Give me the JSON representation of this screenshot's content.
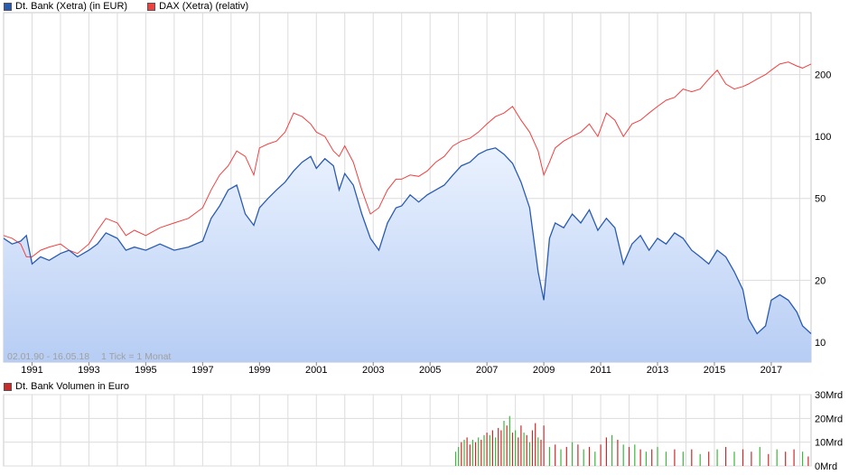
{
  "colors": {
    "deutsche_bank_line": "#2a5bb0",
    "deutsche_bank_fill_top": "#eaf2fe",
    "deutsche_bank_fill_bottom": "#b7cdf4",
    "dax_line": "#f04040",
    "volume_up": "#3cb83c",
    "volume_down": "#cc2a2a",
    "grid": "#dcdcdc",
    "date_range_text": "#a0a0a0"
  },
  "price_chart": {
    "legend": [
      {
        "label": "Dt. Bank (Xetra) (in EUR)",
        "color": "#2a5bb0"
      },
      {
        "label": "DAX (Xetra) (relativ)",
        "color": "#f04040"
      }
    ],
    "date_range_label": "02.01.90 - 16.05.18",
    "tick_note": "1 Tick = 1 Monat"
  },
  "volume_chart": {
    "legend": [
      {
        "label": "Dt. Bank Volumen in Euro",
        "color": "#cc2a2a"
      }
    ]
  },
  "chart_data": [
    {
      "type": "line",
      "title": "",
      "y_scale": "log",
      "ylim": [
        8,
        400
      ],
      "xlim": [
        1990.0,
        2018.4
      ],
      "x_tick_labels": [
        "1991",
        "1993",
        "1995",
        "1997",
        "1999",
        "2001",
        "2003",
        "2005",
        "2007",
        "2009",
        "2011",
        "2013",
        "2015",
        "2017"
      ],
      "y_tick_labels": [
        "10",
        "20",
        "50",
        "100",
        "200"
      ],
      "grid": true,
      "legend_position": "top-left",
      "series": [
        {
          "name": "Dt. Bank (Xetra) (in EUR)",
          "area": true,
          "x": [
            1990.0,
            1990.3,
            1990.6,
            1990.8,
            1991.0,
            1991.3,
            1991.6,
            1992.0,
            1992.3,
            1992.6,
            1993.0,
            1993.3,
            1993.6,
            1994.0,
            1994.3,
            1994.6,
            1995.0,
            1995.5,
            1996.0,
            1996.5,
            1997.0,
            1997.3,
            1997.6,
            1997.9,
            1998.2,
            1998.5,
            1998.8,
            1999.0,
            1999.3,
            1999.6,
            1999.9,
            2000.2,
            2000.5,
            2000.8,
            2001.0,
            2001.3,
            2001.6,
            2001.8,
            2002.0,
            2002.3,
            2002.6,
            2002.9,
            2003.2,
            2003.5,
            2003.8,
            2004.0,
            2004.3,
            2004.6,
            2004.9,
            2005.2,
            2005.5,
            2005.8,
            2006.1,
            2006.4,
            2006.7,
            2007.0,
            2007.3,
            2007.6,
            2007.9,
            2008.2,
            2008.5,
            2008.8,
            2009.0,
            2009.2,
            2009.4,
            2009.7,
            2010.0,
            2010.3,
            2010.6,
            2010.9,
            2011.2,
            2011.5,
            2011.8,
            2012.1,
            2012.4,
            2012.7,
            2013.0,
            2013.3,
            2013.6,
            2013.9,
            2014.2,
            2014.5,
            2014.8,
            2015.1,
            2015.4,
            2015.7,
            2016.0,
            2016.2,
            2016.5,
            2016.8,
            2017.0,
            2017.3,
            2017.6,
            2017.9,
            2018.1,
            2018.4
          ],
          "y": [
            32,
            30,
            31,
            33,
            24,
            26,
            25,
            27,
            28,
            26,
            28,
            30,
            34,
            32,
            28,
            29,
            28,
            30,
            28,
            29,
            31,
            40,
            46,
            55,
            58,
            42,
            37,
            45,
            50,
            55,
            60,
            68,
            75,
            80,
            70,
            78,
            72,
            55,
            66,
            58,
            42,
            32,
            28,
            38,
            45,
            46,
            52,
            48,
            52,
            55,
            58,
            65,
            72,
            75,
            82,
            86,
            88,
            82,
            74,
            60,
            45,
            22,
            16,
            32,
            38,
            36,
            42,
            38,
            44,
            35,
            40,
            36,
            24,
            30,
            33,
            28,
            32,
            30,
            34,
            32,
            28,
            26,
            24,
            28,
            26,
            22,
            18,
            13,
            11,
            12,
            16,
            17,
            16,
            14,
            12,
            11
          ]
        },
        {
          "name": "DAX (Xetra) (relativ)",
          "area": false,
          "x": [
            1990.0,
            1990.3,
            1990.6,
            1990.8,
            1991.0,
            1991.3,
            1991.6,
            1992.0,
            1992.3,
            1992.6,
            1993.0,
            1993.3,
            1993.6,
            1994.0,
            1994.3,
            1994.6,
            1995.0,
            1995.5,
            1996.0,
            1996.5,
            1997.0,
            1997.3,
            1997.6,
            1997.9,
            1998.2,
            1998.5,
            1998.8,
            1999.0,
            1999.3,
            1999.6,
            1999.9,
            2000.2,
            2000.5,
            2000.8,
            2001.0,
            2001.3,
            2001.6,
            2001.8,
            2002.0,
            2002.3,
            2002.6,
            2002.9,
            2003.2,
            2003.5,
            2003.8,
            2004.0,
            2004.3,
            2004.6,
            2004.9,
            2005.2,
            2005.5,
            2005.8,
            2006.1,
            2006.4,
            2006.7,
            2007.0,
            2007.3,
            2007.6,
            2007.9,
            2008.2,
            2008.5,
            2008.8,
            2009.0,
            2009.2,
            2009.4,
            2009.7,
            2010.0,
            2010.3,
            2010.6,
            2010.9,
            2011.2,
            2011.5,
            2011.8,
            2012.1,
            2012.4,
            2012.7,
            2013.0,
            2013.3,
            2013.6,
            2013.9,
            2014.2,
            2014.5,
            2014.8,
            2015.1,
            2015.4,
            2015.7,
            2016.0,
            2016.2,
            2016.5,
            2016.8,
            2017.0,
            2017.3,
            2017.6,
            2017.9,
            2018.1,
            2018.4
          ],
          "y": [
            33,
            32,
            30,
            26,
            26,
            28,
            29,
            30,
            28,
            27,
            30,
            35,
            40,
            38,
            33,
            35,
            33,
            36,
            38,
            40,
            45,
            55,
            65,
            72,
            85,
            80,
            65,
            88,
            92,
            95,
            105,
            130,
            125,
            115,
            105,
            100,
            85,
            80,
            90,
            75,
            55,
            42,
            45,
            55,
            62,
            62,
            65,
            64,
            68,
            75,
            80,
            90,
            95,
            98,
            105,
            115,
            125,
            130,
            140,
            120,
            105,
            85,
            65,
            75,
            88,
            95,
            100,
            105,
            115,
            100,
            130,
            120,
            100,
            115,
            120,
            130,
            140,
            150,
            155,
            170,
            165,
            170,
            190,
            210,
            180,
            170,
            175,
            180,
            190,
            200,
            210,
            225,
            230,
            220,
            215,
            225
          ]
        }
      ]
    },
    {
      "type": "bar",
      "title": "",
      "ylim": [
        0,
        30
      ],
      "ylabel_unit": "Mrd",
      "y_tick_labels": [
        "0Mrd",
        "10Mrd",
        "20Mrd",
        "30Mrd"
      ],
      "xlim": [
        1990.0,
        2018.4
      ],
      "grid": true,
      "legend_position": "top-left",
      "series": [
        {
          "name": "Dt. Bank Volumen in Euro",
          "x": [
            2005.9,
            2006.0,
            2006.1,
            2006.2,
            2006.3,
            2006.4,
            2006.5,
            2006.6,
            2006.7,
            2006.8,
            2006.9,
            2007.0,
            2007.1,
            2007.2,
            2007.3,
            2007.4,
            2007.5,
            2007.6,
            2007.7,
            2007.8,
            2007.9,
            2008.0,
            2008.1,
            2008.2,
            2008.3,
            2008.4,
            2008.5,
            2008.6,
            2008.7,
            2008.8,
            2008.9,
            2009.0,
            2009.2,
            2009.4,
            2009.6,
            2009.8,
            2010.0,
            2010.2,
            2010.4,
            2010.6,
            2010.8,
            2011.0,
            2011.2,
            2011.4,
            2011.6,
            2011.8,
            2012.0,
            2012.2,
            2012.4,
            2012.6,
            2012.8,
            2013.0,
            2013.3,
            2013.6,
            2013.9,
            2014.2,
            2014.5,
            2014.8,
            2015.1,
            2015.4,
            2015.7,
            2016.0,
            2016.3,
            2016.6,
            2016.9,
            2017.2,
            2017.5,
            2017.8,
            2018.1,
            2018.3
          ],
          "values": [
            6,
            8,
            10,
            11,
            12,
            9,
            11,
            10,
            12,
            11,
            13,
            14,
            13,
            15,
            12,
            16,
            15,
            19,
            17,
            21,
            14,
            15,
            12,
            17,
            14,
            13,
            10,
            15,
            18,
            12,
            11,
            17,
            8,
            9,
            7,
            8,
            10,
            9,
            7,
            8,
            6,
            9,
            12,
            13,
            11,
            9,
            8,
            9,
            7,
            6,
            7,
            8,
            6,
            7,
            6,
            7,
            5,
            6,
            7,
            8,
            6,
            7,
            6,
            8,
            5,
            7,
            6,
            7,
            6,
            4
          ],
          "up": [
            true,
            true,
            false,
            true,
            false,
            false,
            true,
            false,
            true,
            false,
            true,
            false,
            true,
            false,
            true,
            false,
            false,
            true,
            false,
            true,
            false,
            true,
            false,
            false,
            true,
            false,
            true,
            false,
            false,
            true,
            false,
            false,
            true,
            false,
            true,
            false,
            true,
            false,
            true,
            false,
            true,
            false,
            false,
            true,
            false,
            true,
            false,
            true,
            false,
            true,
            false,
            true,
            true,
            false,
            true,
            false,
            true,
            false,
            true,
            false,
            true,
            false,
            false,
            true,
            false,
            true,
            false,
            false,
            true,
            false
          ]
        }
      ]
    }
  ]
}
